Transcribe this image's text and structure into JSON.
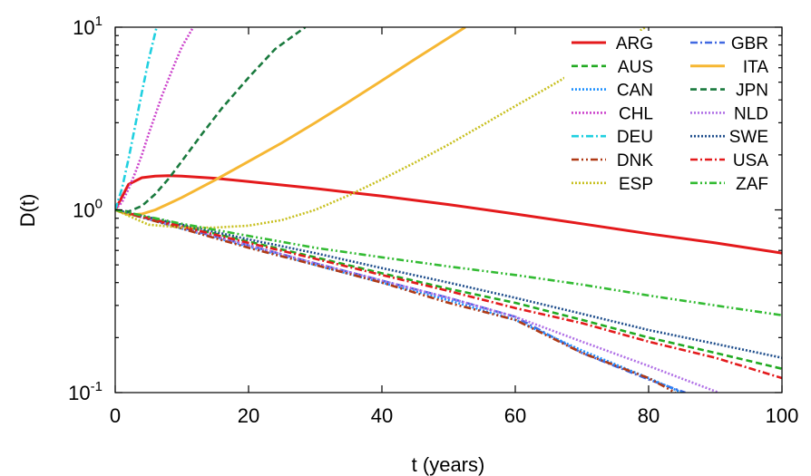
{
  "chart_data": {
    "type": "line",
    "title": "",
    "xlabel": "t (years)",
    "ylabel": "D(t)",
    "xlim": [
      0,
      100
    ],
    "ylim": [
      0.1,
      10
    ],
    "yscale": "log",
    "grid": false,
    "legend_position": "top-right",
    "x_ticks": [
      "0",
      "20",
      "40",
      "60",
      "80",
      "100"
    ],
    "y_ticks": [
      {
        "base": "10",
        "exp": "-1",
        "value": 0.1
      },
      {
        "base": "10",
        "exp": "0",
        "value": 1
      },
      {
        "base": "10",
        "exp": "1",
        "value": 10
      }
    ],
    "series": [
      {
        "name": "ARG",
        "color": "#e41a1c",
        "dash": "solid",
        "x": [
          0,
          2,
          4,
          6,
          8,
          10,
          15,
          20,
          30,
          40,
          50,
          60,
          70,
          80,
          90,
          100
        ],
        "y": [
          1.0,
          1.38,
          1.5,
          1.53,
          1.54,
          1.53,
          1.49,
          1.43,
          1.31,
          1.19,
          1.07,
          0.95,
          0.84,
          0.74,
          0.66,
          0.58
        ]
      },
      {
        "name": "GBR",
        "color": "#4169e1",
        "dash": "dashdot",
        "x": [
          0,
          10,
          20,
          30,
          40,
          50,
          60,
          70,
          80,
          85.5
        ],
        "y": [
          1.0,
          0.8,
          0.64,
          0.51,
          0.41,
          0.33,
          0.26,
          0.165,
          0.118,
          0.1
        ]
      },
      {
        "name": "AUS",
        "color": "#22aa22",
        "dash": "dashed",
        "x": [
          0,
          10,
          20,
          30,
          40,
          50,
          60,
          70,
          80,
          90,
          100
        ],
        "y": [
          1.0,
          0.82,
          0.67,
          0.55,
          0.45,
          0.37,
          0.31,
          0.25,
          0.2,
          0.165,
          0.135
        ]
      },
      {
        "name": "ITA",
        "color": "#f6b733",
        "dash": "solid",
        "x": [
          0,
          2,
          4,
          6,
          8,
          10,
          15,
          20,
          25,
          30,
          35,
          40,
          45,
          52.5
        ],
        "y": [
          1.0,
          0.94,
          0.95,
          1.0,
          1.08,
          1.17,
          1.46,
          1.84,
          2.33,
          3.0,
          3.9,
          5.1,
          6.7,
          10.0
        ]
      },
      {
        "name": "CAN",
        "color": "#1e90ff",
        "dash": "dotted",
        "x": [
          0,
          10,
          20,
          30,
          40,
          50,
          60,
          70,
          80,
          85
        ],
        "y": [
          1.0,
          0.79,
          0.63,
          0.5,
          0.4,
          0.32,
          0.25,
          0.17,
          0.12,
          0.1
        ]
      },
      {
        "name": "JPN",
        "color": "#1a7a3e",
        "dash": "dashed",
        "x": [
          0,
          2,
          4,
          6,
          8,
          10,
          13,
          16,
          20,
          24,
          28.5
        ],
        "y": [
          1.0,
          0.98,
          1.05,
          1.22,
          1.48,
          1.85,
          2.6,
          3.6,
          5.3,
          7.6,
          10.0
        ]
      },
      {
        "name": "CHL",
        "color": "#cc44cc",
        "dash": "dotted",
        "x": [
          0,
          1,
          2,
          3,
          4,
          5,
          6,
          7,
          8,
          9,
          10,
          11.7
        ],
        "y": [
          1.0,
          1.1,
          1.3,
          1.6,
          2.0,
          2.6,
          3.3,
          4.2,
          5.2,
          6.4,
          7.8,
          10.0
        ]
      },
      {
        "name": "NLD",
        "color": "#b070e6",
        "dash": "dotted",
        "x": [
          0,
          10,
          20,
          30,
          40,
          50,
          60,
          70,
          80,
          90.5
        ],
        "y": [
          1.0,
          0.8,
          0.64,
          0.51,
          0.41,
          0.33,
          0.26,
          0.19,
          0.14,
          0.1
        ]
      },
      {
        "name": "DEU",
        "color": "#20d0e0",
        "dash": "dashdot",
        "x": [
          0,
          1,
          2,
          3,
          4,
          5,
          6.2
        ],
        "y": [
          1.0,
          1.3,
          1.9,
          2.9,
          4.4,
          6.6,
          10.0
        ]
      },
      {
        "name": "SWE",
        "color": "#1f4e8c",
        "dash": "dotted",
        "x": [
          0,
          10,
          20,
          30,
          40,
          50,
          60,
          70,
          80,
          90,
          100
        ],
        "y": [
          1.0,
          0.83,
          0.69,
          0.58,
          0.48,
          0.4,
          0.33,
          0.27,
          0.22,
          0.185,
          0.155
        ]
      },
      {
        "name": "DNK",
        "color": "#b03a16",
        "dash": "dashdotdot",
        "x": [
          0,
          10,
          20,
          30,
          40,
          50,
          60,
          70,
          80,
          84
        ],
        "y": [
          1.0,
          0.79,
          0.62,
          0.5,
          0.4,
          0.31,
          0.25,
          0.165,
          0.12,
          0.1
        ]
      },
      {
        "name": "USA",
        "color": "#e31a1c",
        "dash": "dashdot",
        "x": [
          0,
          10,
          20,
          30,
          40,
          50,
          60,
          70,
          80,
          90,
          100
        ],
        "y": [
          1.0,
          0.81,
          0.66,
          0.54,
          0.44,
          0.36,
          0.29,
          0.24,
          0.19,
          0.155,
          0.12
        ]
      },
      {
        "name": "ESP",
        "color": "#c8c020",
        "dash": "dotted",
        "x": [
          0,
          5,
          10,
          15,
          20,
          25,
          30,
          35,
          40,
          45,
          50,
          55,
          60,
          65,
          70,
          75,
          79.5
        ],
        "y": [
          1.0,
          0.83,
          0.8,
          0.8,
          0.82,
          0.88,
          1.0,
          1.2,
          1.47,
          1.82,
          2.28,
          2.9,
          3.7,
          4.7,
          6.0,
          7.7,
          10.0
        ]
      },
      {
        "name": "ZAF",
        "color": "#33bb33",
        "dash": "dashdotdot",
        "x": [
          0,
          10,
          20,
          30,
          40,
          50,
          60,
          70,
          80,
          90,
          100
        ],
        "y": [
          1.0,
          0.84,
          0.72,
          0.62,
          0.55,
          0.49,
          0.44,
          0.39,
          0.34,
          0.3,
          0.265
        ]
      }
    ]
  }
}
